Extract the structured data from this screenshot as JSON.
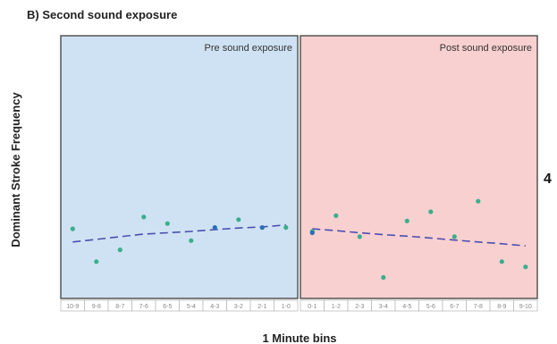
{
  "heading": "B) Second sound exposure",
  "side_label": "4",
  "colors": {
    "pre_panel": "#cfe2f3",
    "post_panel": "#f9d0d0",
    "panel_border": "#555555",
    "point_green": "#3aae8c",
    "point_blue": "#2a6fb8",
    "dash_line": "#4b4fb0",
    "tick_box_border": "#bbbbbb",
    "tick_text": "#888888"
  },
  "chart_data": {
    "type": "scatter",
    "title": "B) Second sound exposure",
    "xlabel": "1 Minute bins",
    "ylabel": "Dominant Stroke Frequency",
    "ylim": [
      0,
      1
    ],
    "grid": false,
    "legend": "none",
    "panels": [
      {
        "label": "Pre sound exposure",
        "categories": [
          "10-9",
          "9-8",
          "8-7",
          "7-6",
          "6-5",
          "5-4",
          "4-3",
          "3-2",
          "2-1",
          "1-0"
        ],
        "points_green": [
          {
            "x": "10-9",
            "y": 0.265
          },
          {
            "x": "9-8",
            "y": 0.14
          },
          {
            "x": "8-7",
            "y": 0.185
          },
          {
            "x": "7-6",
            "y": 0.31
          },
          {
            "x": "6-5",
            "y": 0.285
          },
          {
            "x": "5-4",
            "y": 0.22
          },
          {
            "x": "3-2",
            "y": 0.3
          },
          {
            "x": "1-0",
            "y": 0.27
          }
        ],
        "points_blue": [
          {
            "x": "4-3",
            "y": 0.27
          },
          {
            "x": "2-1",
            "y": 0.27
          }
        ],
        "dashed_mean_line": [
          0.215,
          0.225,
          0.235,
          0.245,
          0.25,
          0.255,
          0.262,
          0.268,
          0.272,
          0.28
        ]
      },
      {
        "label": "Post sound exposure",
        "categories": [
          "0-1",
          "1-2",
          "2-3",
          "3-4",
          "4-5",
          "5-6",
          "6-7",
          "7-8",
          "8-9",
          "9-10"
        ],
        "points_green": [
          {
            "x": "0-1",
            "y": 0.255
          },
          {
            "x": "1-2",
            "y": 0.315
          },
          {
            "x": "2-3",
            "y": 0.235
          },
          {
            "x": "3-4",
            "y": 0.08
          },
          {
            "x": "4-5",
            "y": 0.295
          },
          {
            "x": "5-6",
            "y": 0.33
          },
          {
            "x": "6-7",
            "y": 0.235
          },
          {
            "x": "7-8",
            "y": 0.37
          },
          {
            "x": "8-9",
            "y": 0.14
          },
          {
            "x": "9-10",
            "y": 0.12
          }
        ],
        "points_blue": [
          {
            "x": "0-1",
            "y": 0.25
          }
        ],
        "dashed_mean_line": [
          0.265,
          0.258,
          0.25,
          0.243,
          0.237,
          0.23,
          0.222,
          0.215,
          0.208,
          0.2
        ]
      }
    ]
  }
}
